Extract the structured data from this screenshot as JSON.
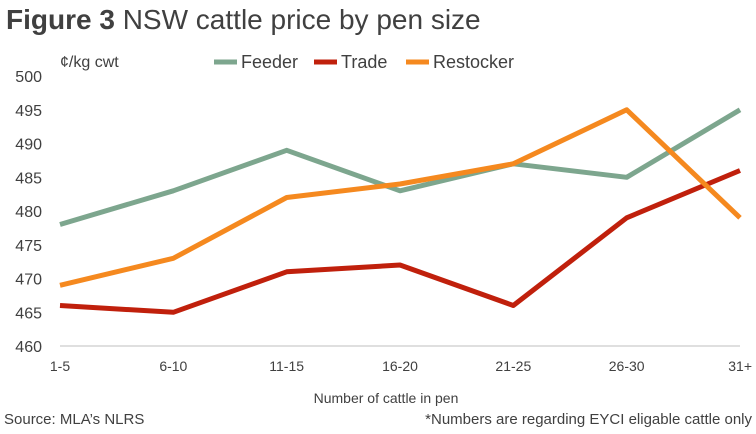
{
  "title_prefix": "Figure 3",
  "title_text": "NSW cattle price by pen size",
  "source": "Source: MLA’s NLRS",
  "note": "*Numbers are regarding EYCI eligable cattle only",
  "chart_data": {
    "type": "line",
    "categories": [
      "1-5",
      "6-10",
      "11-15",
      "16-20",
      "21-25",
      "26-30",
      "31+"
    ],
    "ylabel": "¢/kg cwt",
    "xlabel": "Number of cattle in pen",
    "ylim": [
      460,
      500
    ],
    "yticks": [
      460,
      465,
      470,
      475,
      480,
      485,
      490,
      495,
      500
    ],
    "grid": false,
    "legend_position": "top",
    "series": [
      {
        "name": "Feeder",
        "color": "#7da68e",
        "values": [
          478,
          483,
          489,
          483,
          487,
          485,
          495
        ]
      },
      {
        "name": "Trade",
        "color": "#c0200c",
        "values": [
          466,
          465,
          471,
          472,
          466,
          479,
          486
        ]
      },
      {
        "name": "Restocker",
        "color": "#f5891f",
        "values": [
          469,
          473,
          482,
          484,
          487,
          495,
          479
        ]
      }
    ]
  }
}
